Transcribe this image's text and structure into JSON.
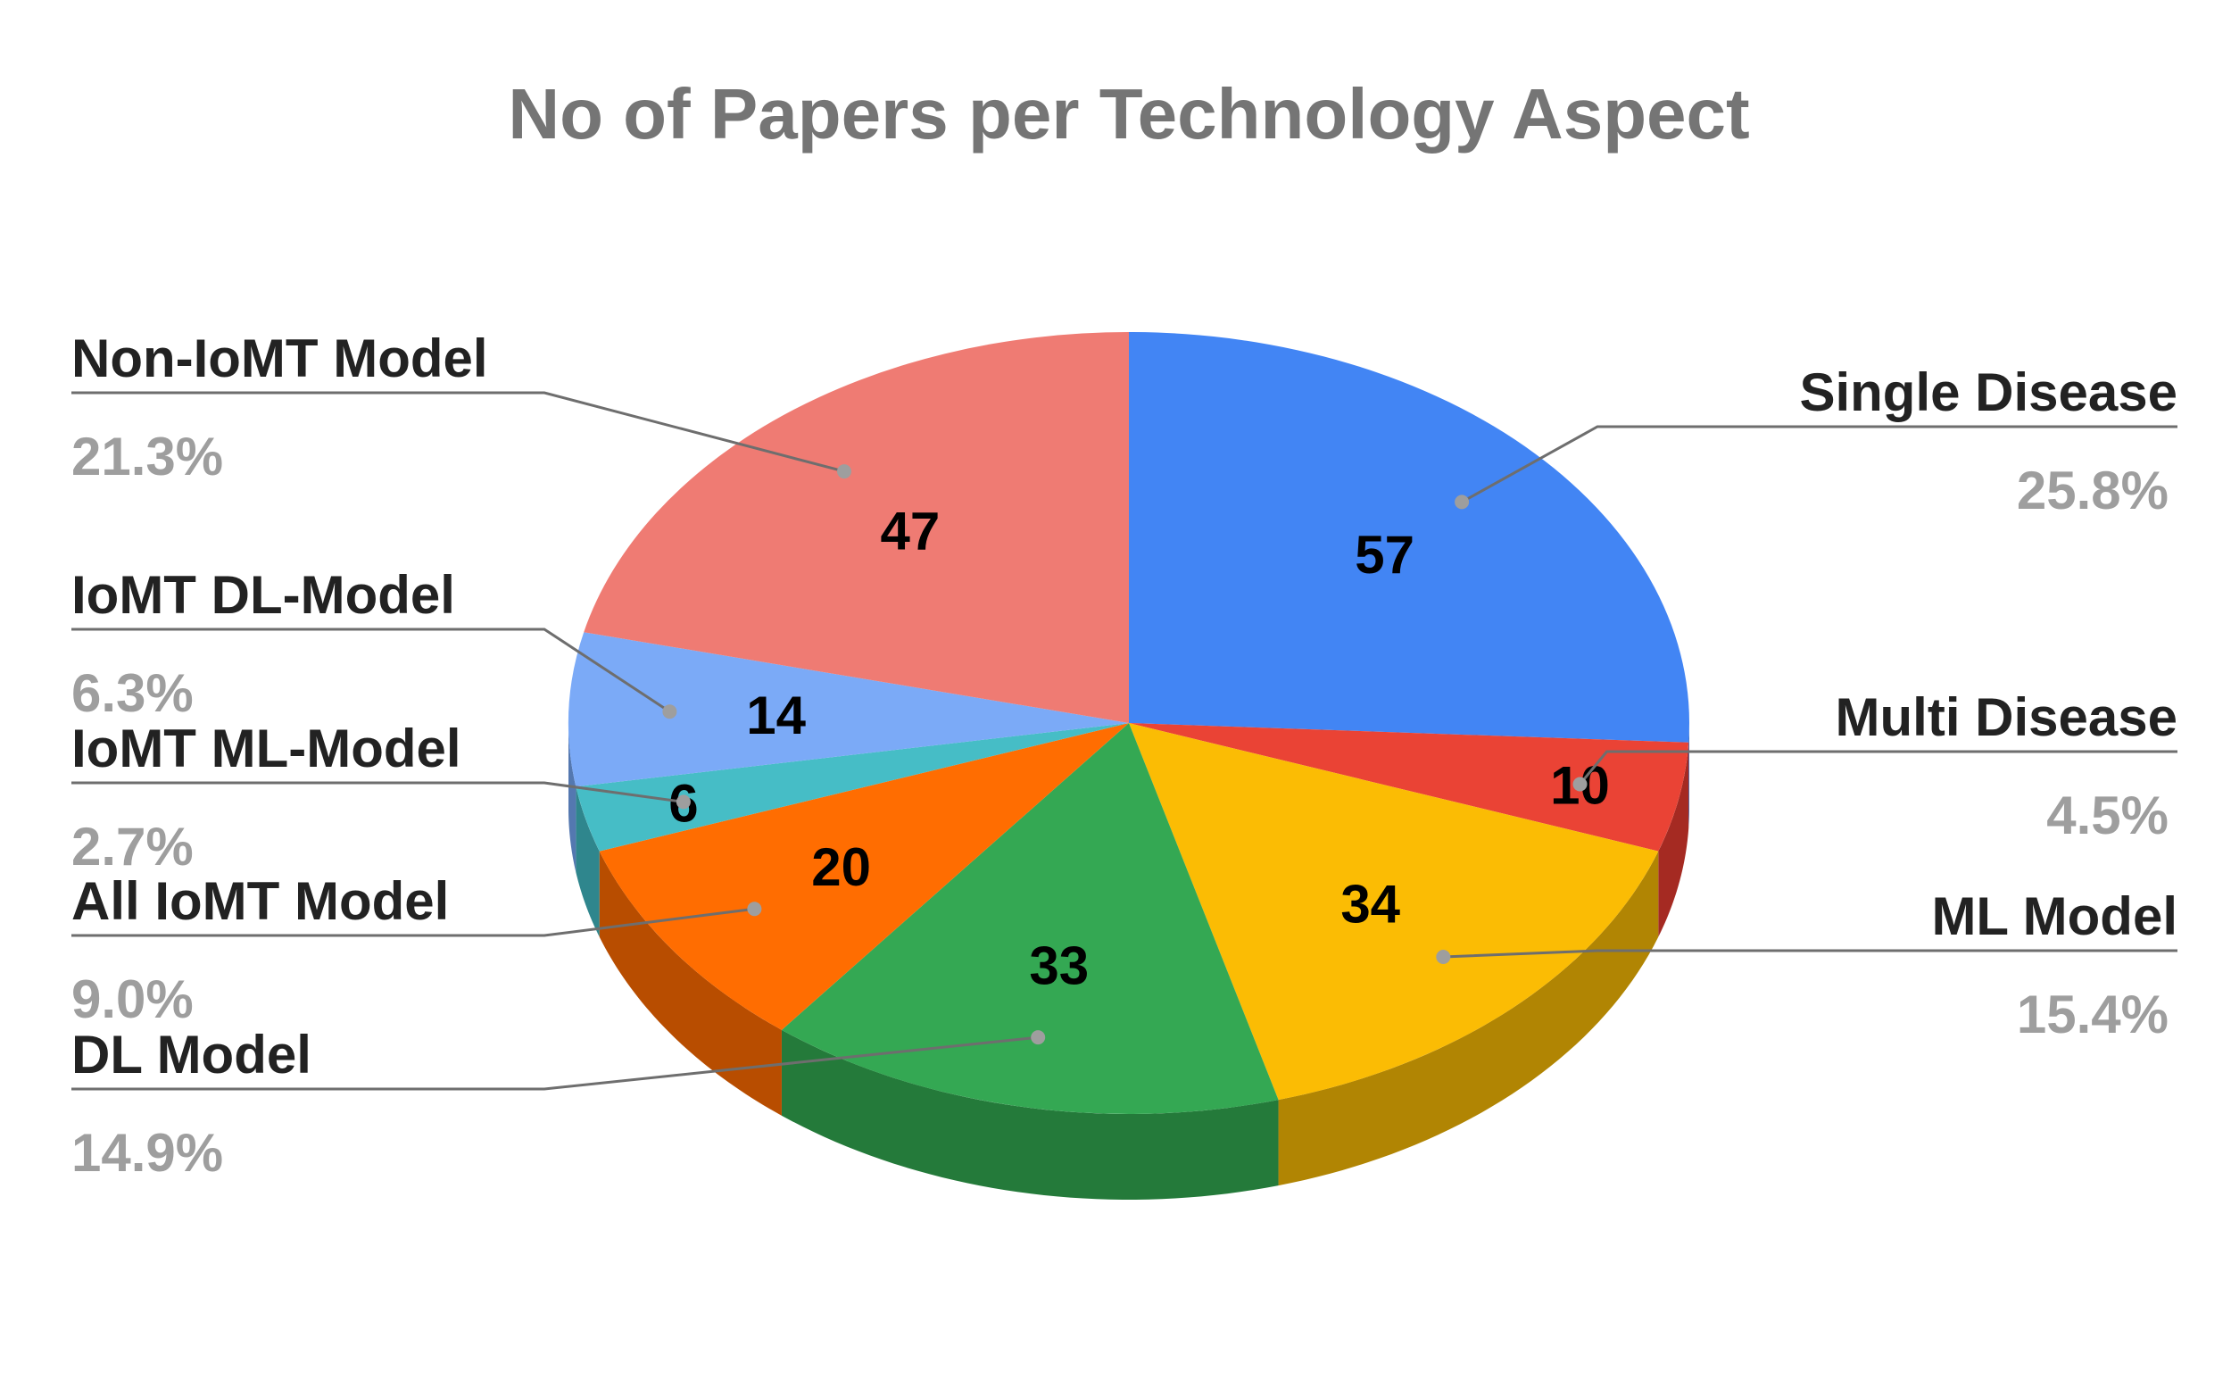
{
  "chart_data": {
    "type": "pie",
    "style": "3d",
    "title": "No of Papers per Technology Aspect",
    "slices": [
      {
        "name": "Single Disease",
        "value": 57,
        "percent_label": "25.8%",
        "color": "#4285f4",
        "side_color": "#2a5db0"
      },
      {
        "name": "Multi Disease",
        "value": 10,
        "percent_label": "4.5%",
        "color": "#ea4335",
        "side_color": "#a52a22"
      },
      {
        "name": "ML Model",
        "value": 34,
        "percent_label": "15.4%",
        "color": "#fbbc04",
        "side_color": "#b18503"
      },
      {
        "name": "DL Model",
        "value": 33,
        "percent_label": "14.9%",
        "color": "#34a853",
        "side_color": "#247a3a"
      },
      {
        "name": "All IoMT Model",
        "value": 20,
        "percent_label": "9.0%",
        "color": "#ff6d01",
        "side_color": "#b84d00"
      },
      {
        "name": "IoMT ML-Model",
        "value": 6,
        "percent_label": "2.7%",
        "color": "#46bdc6",
        "side_color": "#2f868d"
      },
      {
        "name": "IoMT DL-Model",
        "value": 14,
        "percent_label": "6.3%",
        "color": "#7baaf7",
        "side_color": "#5478b0"
      },
      {
        "name": "Non-IoMT Model",
        "value": 47,
        "percent_label": "21.3%",
        "color": "#ef7b73",
        "side_color": "#a9564f"
      }
    ],
    "legend": "callout labels with leader lines"
  }
}
